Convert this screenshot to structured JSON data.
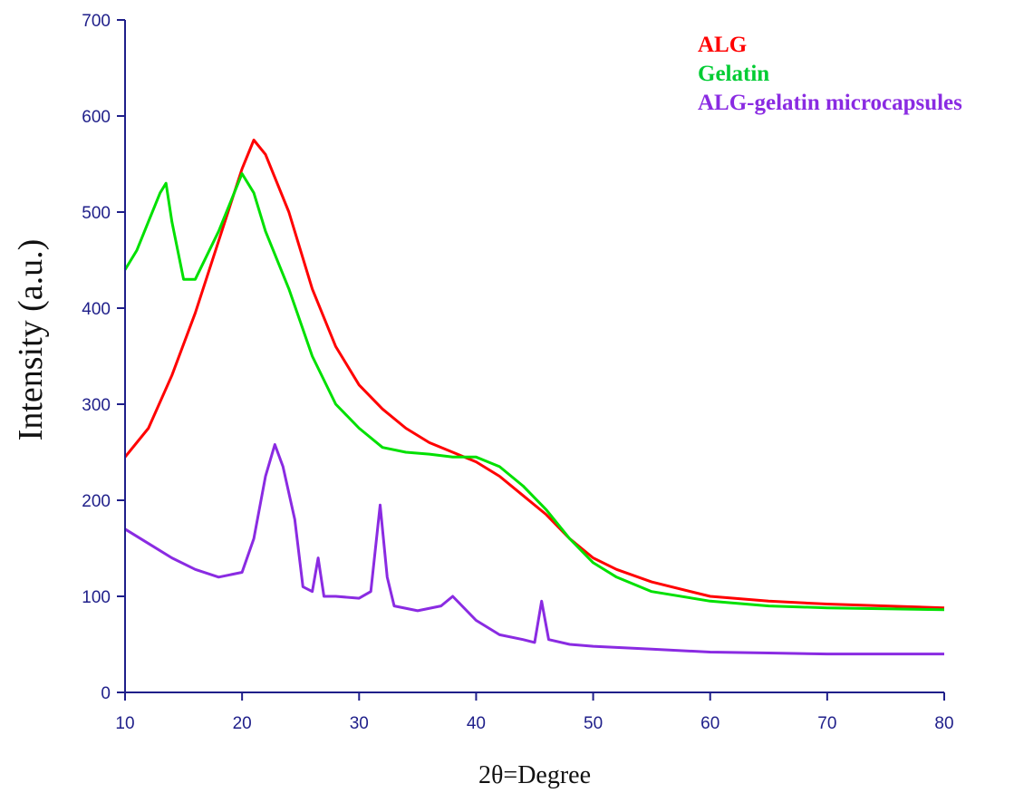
{
  "chart_data": {
    "type": "line",
    "title": "",
    "xlabel": "2θ=Degree",
    "ylabel": "Intensity (a.u.)",
    "xlim": [
      10,
      80
    ],
    "ylim": [
      0,
      700
    ],
    "xticks": [
      10,
      20,
      30,
      40,
      50,
      60,
      70,
      80
    ],
    "yticks": [
      0,
      100,
      200,
      300,
      400,
      500,
      600,
      700
    ],
    "grid": false,
    "legend_position": "top-right",
    "series": [
      {
        "name": "ALG",
        "color": "#ff0000",
        "x": [
          10,
          12,
          14,
          16,
          18,
          20,
          21,
          22,
          24,
          26,
          28,
          30,
          32,
          34,
          36,
          38,
          40,
          42,
          44,
          46,
          48,
          50,
          52,
          55,
          60,
          65,
          70,
          75,
          80
        ],
        "y": [
          245,
          275,
          330,
          395,
          470,
          545,
          575,
          560,
          500,
          420,
          360,
          320,
          295,
          275,
          260,
          250,
          240,
          225,
          205,
          185,
          160,
          140,
          128,
          115,
          100,
          95,
          92,
          90,
          88
        ]
      },
      {
        "name": "Gelatin",
        "color": "#00e000",
        "x": [
          10,
          11,
          12,
          13,
          13.5,
          14,
          15,
          16,
          18,
          20,
          21,
          22,
          24,
          26,
          28,
          30,
          32,
          34,
          36,
          38,
          40,
          42,
          44,
          46,
          48,
          50,
          52,
          55,
          60,
          65,
          70,
          75,
          80
        ],
        "y": [
          440,
          460,
          490,
          520,
          530,
          490,
          430,
          430,
          480,
          540,
          520,
          480,
          420,
          350,
          300,
          275,
          255,
          250,
          248,
          245,
          245,
          235,
          215,
          190,
          160,
          135,
          120,
          105,
          95,
          90,
          88,
          87,
          86
        ]
      },
      {
        "name": "ALG-gelatin microcapsules",
        "color": "#8a2be2",
        "x": [
          10,
          12,
          14,
          16,
          18,
          20,
          21,
          22,
          22.8,
          23.5,
          24.5,
          25.2,
          26,
          26.5,
          27,
          28,
          30,
          31,
          31.8,
          32.4,
          33,
          35,
          37,
          38,
          40,
          42,
          44,
          45,
          45.6,
          46.2,
          48,
          50,
          55,
          60,
          65,
          70,
          75,
          80
        ],
        "y": [
          170,
          155,
          140,
          128,
          120,
          125,
          160,
          225,
          258,
          235,
          180,
          110,
          105,
          140,
          100,
          100,
          98,
          105,
          195,
          120,
          90,
          85,
          90,
          100,
          75,
          60,
          55,
          52,
          95,
          55,
          50,
          48,
          45,
          42,
          41,
          40,
          40,
          40
        ]
      }
    ]
  }
}
